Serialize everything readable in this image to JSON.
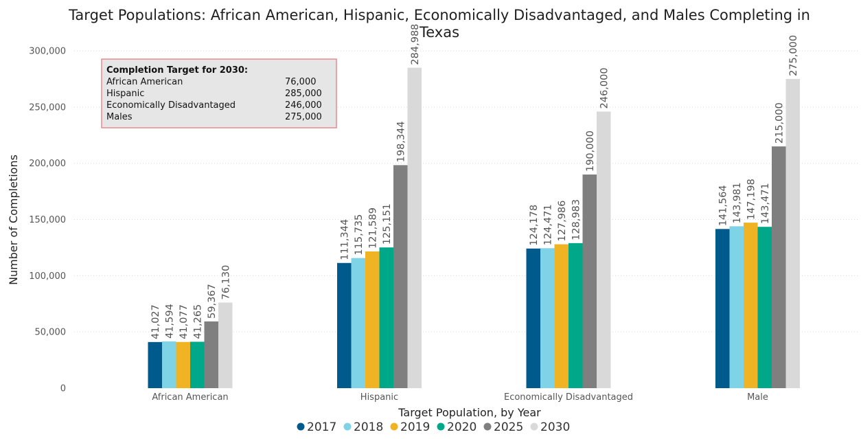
{
  "chart_data": {
    "type": "bar",
    "title_lines": [
      "Target Populations: African American, Hispanic, Economically Disadvantaged, and Males Completing in",
      "Texas"
    ],
    "xlabel": "Target Population, by Year",
    "ylabel": "Number of Completions",
    "ylim": [
      0,
      300000
    ],
    "yticks": [
      0,
      50000,
      100000,
      150000,
      200000,
      250000,
      300000
    ],
    "ytick_labels": [
      "0",
      "50,000",
      "100,000",
      "150,000",
      "200,000",
      "250,000",
      "300,000"
    ],
    "grid": true,
    "legend_position": "bottom",
    "categories": [
      "African American",
      "Hispanic",
      "Economically Disadvantaged",
      "Male"
    ],
    "series": [
      {
        "name": "2017",
        "color": "#005a8c",
        "values": [
          41027,
          111344,
          124178,
          141564
        ],
        "labels": [
          "41,027",
          "111,344",
          "124,178",
          "141,564"
        ]
      },
      {
        "name": "2018",
        "color": "#7fd3e6",
        "values": [
          41594,
          115735,
          124471,
          143981
        ],
        "labels": [
          "41,594",
          "115,735",
          "124,471",
          "143,981"
        ]
      },
      {
        "name": "2019",
        "color": "#f0b323",
        "values": [
          41077,
          121589,
          127986,
          147198
        ],
        "labels": [
          "41,077",
          "121,589",
          "127,986",
          "147,198"
        ]
      },
      {
        "name": "2020",
        "color": "#00a88a",
        "values": [
          41265,
          125151,
          128983,
          143471
        ],
        "labels": [
          "41,265",
          "125,151",
          "128,983",
          "143,471"
        ]
      },
      {
        "name": "2025",
        "color": "#7f7f7f",
        "values": [
          59367,
          198344,
          190000,
          215000
        ],
        "labels": [
          "59,367",
          "198,344",
          "190,000",
          "215,000"
        ]
      },
      {
        "name": "2030",
        "color": "#d9d9d9",
        "values": [
          76130,
          284988,
          246000,
          275000
        ],
        "labels": [
          "76,130",
          "284,988",
          "246,000",
          "275,000"
        ]
      }
    ],
    "annotation": {
      "title": "Completion Target for 2030:",
      "rows": [
        {
          "label": "African American",
          "value": "76,000"
        },
        {
          "label": "Hispanic",
          "value": "285,000"
        },
        {
          "label": "Economically Disadvantaged",
          "value": "246,000"
        },
        {
          "label": "Males",
          "value": "275,000"
        }
      ]
    }
  }
}
